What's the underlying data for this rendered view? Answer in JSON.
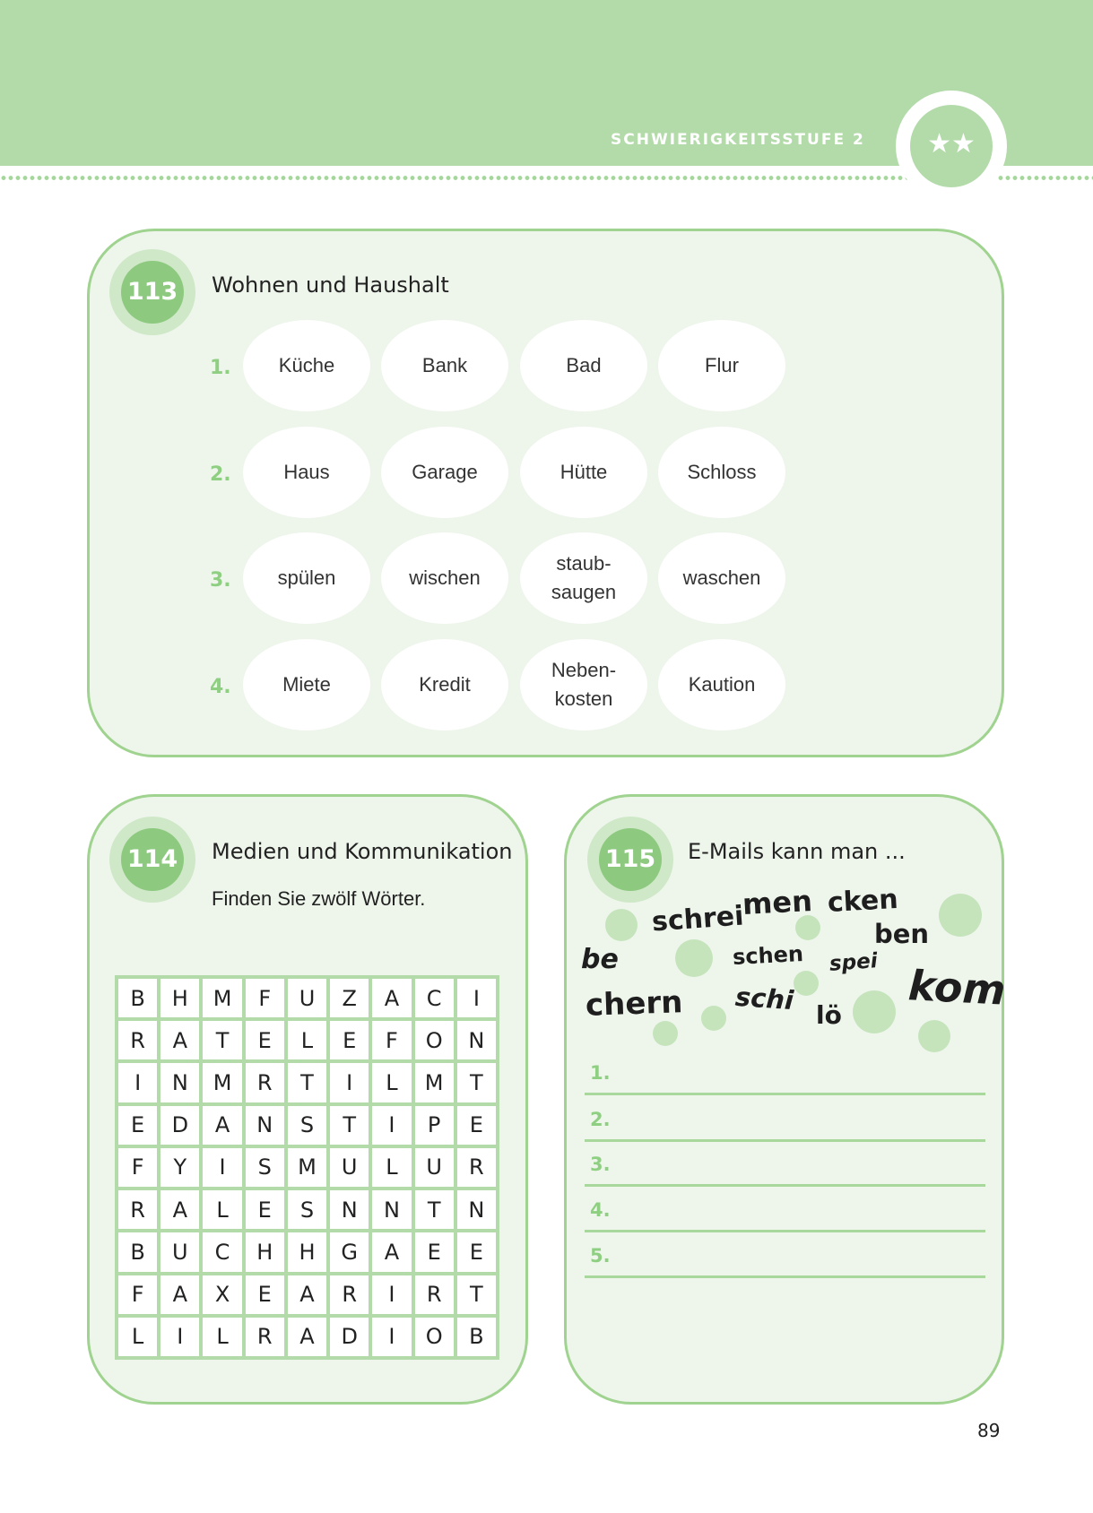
{
  "header": {
    "level_label": "SCHWIERIGKEITSSTUFE 2",
    "level_stars": "★★"
  },
  "ex113": {
    "number": "113",
    "title": "Wohnen und Haushalt",
    "rows": [
      {
        "label": "1.",
        "words": [
          "Küche",
          "Bank",
          "Bad",
          "Flur"
        ]
      },
      {
        "label": "2.",
        "words": [
          "Haus",
          "Garage",
          "Hütte",
          "Schloss"
        ]
      },
      {
        "label": "3.",
        "words": [
          "spülen",
          "wischen",
          "staub-\nsaugen",
          "waschen"
        ]
      },
      {
        "label": "4.",
        "words": [
          "Miete",
          "Kredit",
          "Neben-\nkosten",
          "Kaution"
        ]
      }
    ]
  },
  "ex114": {
    "number": "114",
    "title": "Medien und Kommunikation",
    "instruction": "Finden Sie zwölf Wörter.",
    "grid": [
      [
        "B",
        "H",
        "M",
        "F",
        "U",
        "Z",
        "A",
        "C",
        "I"
      ],
      [
        "R",
        "A",
        "T",
        "E",
        "L",
        "E",
        "F",
        "O",
        "N"
      ],
      [
        "I",
        "N",
        "M",
        "R",
        "T",
        "I",
        "L",
        "M",
        "T"
      ],
      [
        "E",
        "D",
        "A",
        "N",
        "S",
        "T",
        "I",
        "P",
        "E"
      ],
      [
        "F",
        "Y",
        "I",
        "S",
        "M",
        "U",
        "L",
        "U",
        "R"
      ],
      [
        "R",
        "A",
        "L",
        "E",
        "S",
        "N",
        "N",
        "T",
        "N"
      ],
      [
        "B",
        "U",
        "C",
        "H",
        "H",
        "G",
        "A",
        "E",
        "E"
      ],
      [
        "F",
        "A",
        "X",
        "E",
        "A",
        "R",
        "I",
        "R",
        "T"
      ],
      [
        "L",
        "I",
        "L",
        "R",
        "A",
        "D",
        "I",
        "O",
        "B"
      ]
    ]
  },
  "ex115": {
    "number": "115",
    "title": "E-Mails kann man ...",
    "chunks": [
      "men",
      "cken",
      "schrei",
      "ben",
      "be",
      "schen",
      "spei",
      "chern",
      "schi",
      "lö",
      "kom"
    ],
    "answer_labels": [
      "1.",
      "2.",
      "3.",
      "4.",
      "5."
    ]
  },
  "page_number": "89",
  "colors": {
    "header": "#b3dbaa",
    "panel": "#eef6ec",
    "border": "#9fd38f",
    "accent": "#8dc97f"
  }
}
